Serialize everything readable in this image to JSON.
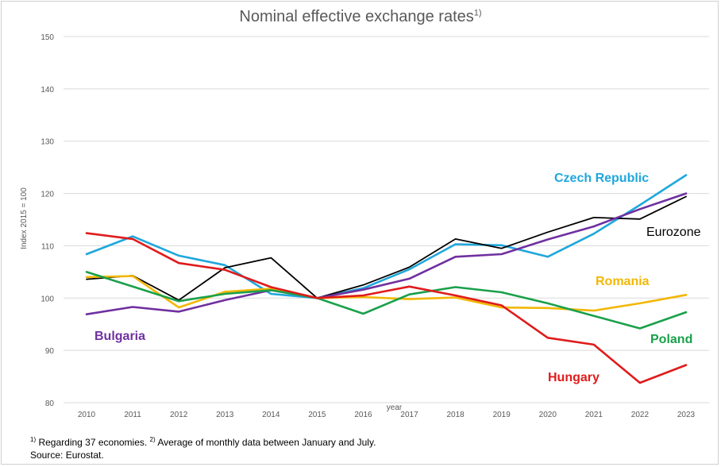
{
  "title": "Nominal effective exchange rates",
  "title_sup": "1)",
  "footnote": {
    "line1_sup1": "1)",
    "line1_text1": " Regarding 37 economies. ",
    "line1_sup2": "2)",
    "line1_text2": " Average of monthly data between January and July.",
    "line2": "Source: Eurostat."
  },
  "chart_data": {
    "type": "line",
    "title": "Nominal effective exchange rates",
    "xlabel": "year",
    "ylabel": "Index 2015 = 100",
    "ylim": [
      80,
      150
    ],
    "yticks": [
      80,
      90,
      100,
      110,
      120,
      130,
      140,
      150
    ],
    "grid": true,
    "x": [
      "2010",
      "2011",
      "2012",
      "2013",
      "2014",
      "2015",
      "2016",
      "2017",
      "2018",
      "2019",
      "2020",
      "2021",
      "2022",
      "2023"
    ],
    "series": [
      {
        "name": "Czech Republic",
        "color": "#1fa7dc",
        "bold": true,
        "values": [
          108.4,
          111.8,
          108.1,
          106.3,
          100.8,
          100.0,
          101.9,
          105.5,
          110.3,
          110.1,
          107.9,
          112.3,
          117.8,
          123.5
        ]
      },
      {
        "name": "Eurozone",
        "color": "#000000",
        "bold": false,
        "values": [
          103.6,
          104.3,
          99.6,
          105.8,
          107.7,
          100.0,
          102.5,
          105.9,
          111.3,
          109.5,
          112.6,
          115.4,
          115.1,
          119.4
        ]
      },
      {
        "name": "Bulgaria",
        "color": "#7030a0",
        "bold": true,
        "values": [
          96.9,
          98.3,
          97.4,
          99.6,
          101.5,
          100.0,
          101.6,
          103.7,
          107.9,
          108.4,
          111.2,
          113.7,
          117.0,
          120.0
        ]
      },
      {
        "name": "Romania",
        "color": "#f2b705",
        "bold": true,
        "values": [
          104.0,
          104.2,
          98.2,
          101.2,
          101.8,
          100.0,
          100.2,
          99.8,
          100.1,
          98.2,
          98.1,
          97.6,
          99.0,
          100.6
        ]
      },
      {
        "name": "Poland",
        "color": "#1aa04a",
        "bold": true,
        "values": [
          105.0,
          102.2,
          99.4,
          100.8,
          101.5,
          100.0,
          97.0,
          100.7,
          102.1,
          101.1,
          99.0,
          96.6,
          94.2,
          97.3
        ]
      },
      {
        "name": "Hungary",
        "color": "#e01b1b",
        "bold": true,
        "values": [
          112.4,
          111.3,
          106.7,
          105.4,
          102.1,
          100.0,
          100.5,
          102.2,
          100.5,
          98.6,
          92.4,
          91.1,
          83.8,
          87.2
        ]
      }
    ]
  }
}
